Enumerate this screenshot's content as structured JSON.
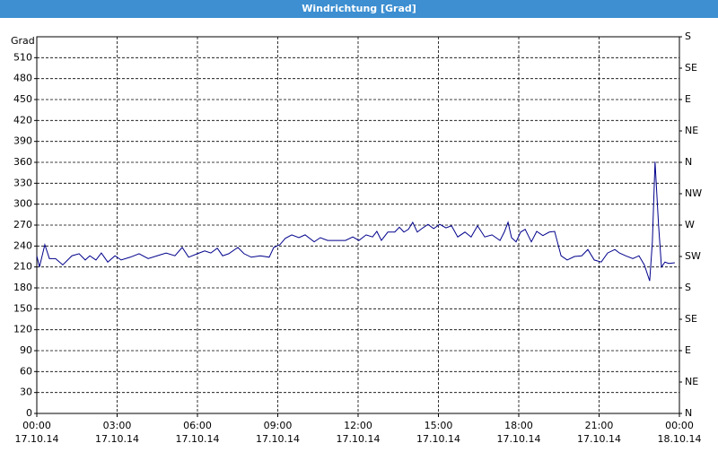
{
  "chart_data": {
    "type": "line",
    "title": "Windrichtung [Grad]",
    "y_label": "Grad",
    "x": [
      0,
      0.1,
      0.3,
      0.47,
      0.7,
      0.97,
      1.31,
      1.58,
      1.81,
      1.98,
      2.21,
      2.41,
      2.65,
      2.92,
      3.15,
      3.49,
      3.82,
      4.16,
      4.49,
      4.83,
      5.16,
      5.43,
      5.67,
      6.0,
      6.27,
      6.5,
      6.74,
      6.94,
      7.17,
      7.51,
      7.74,
      8.01,
      8.35,
      8.68,
      8.85,
      9.08,
      9.28,
      9.52,
      9.79,
      10.02,
      10.36,
      10.59,
      10.86,
      11.2,
      11.53,
      11.8,
      12.03,
      12.3,
      12.54,
      12.7,
      12.87,
      13.11,
      13.37,
      13.54,
      13.71,
      13.88,
      14.04,
      14.21,
      14.38,
      14.61,
      14.82,
      15.05,
      15.28,
      15.49,
      15.72,
      15.99,
      16.22,
      16.46,
      16.73,
      17.0,
      17.3,
      17.46,
      17.6,
      17.73,
      17.9,
      18.07,
      18.24,
      18.47,
      18.67,
      18.9,
      19.14,
      19.34,
      19.58,
      19.81,
      20.08,
      20.35,
      20.58,
      20.82,
      21.08,
      21.32,
      21.59,
      21.76,
      21.99,
      22.26,
      22.49,
      22.69,
      22.89,
      22.99,
      23.09,
      23.22,
      23.33,
      23.46,
      23.6,
      23.83
    ],
    "series": [
      {
        "color": "#00008b",
        "values": [
          226,
          210,
          242,
          222,
          222,
          213,
          226,
          229,
          220,
          226,
          220,
          230,
          217,
          226,
          220,
          224,
          229,
          222,
          226,
          230,
          226,
          238,
          224,
          229,
          233,
          230,
          237,
          226,
          229,
          238,
          229,
          224,
          226,
          224,
          238,
          242,
          251,
          256,
          252,
          256,
          246,
          252,
          248,
          248,
          248,
          253,
          248,
          256,
          253,
          261,
          248,
          260,
          260,
          267,
          260,
          264,
          274,
          260,
          265,
          271,
          265,
          271,
          266,
          269,
          253,
          260,
          253,
          269,
          253,
          256,
          248,
          260,
          274,
          252,
          246,
          260,
          264,
          246,
          261,
          255,
          260,
          261,
          226,
          220,
          225,
          226,
          235,
          220,
          217,
          230,
          235,
          230,
          226,
          222,
          226,
          213,
          190,
          246,
          361,
          271,
          210,
          217,
          215,
          216
        ]
      }
    ],
    "xlim": [
      0,
      24
    ],
    "xticks": [
      {
        "value": 0,
        "label": "00:00",
        "date": "17.10.14"
      },
      {
        "value": 3,
        "label": "03:00",
        "date": "17.10.14"
      },
      {
        "value": 6,
        "label": "06:00",
        "date": "17.10.14"
      },
      {
        "value": 9,
        "label": "09:00",
        "date": "17.10.14"
      },
      {
        "value": 12,
        "label": "12:00",
        "date": "17.10.14"
      },
      {
        "value": 15,
        "label": "15:00",
        "date": "17.10.14"
      },
      {
        "value": 18,
        "label": "18:00",
        "date": "17.10.14"
      },
      {
        "value": 21,
        "label": "21:00",
        "date": "17.10.14"
      },
      {
        "value": 24,
        "label": "00:00",
        "date": "18.10.14"
      }
    ],
    "ylim": [
      0,
      540
    ],
    "yticks": [
      0,
      30,
      60,
      90,
      120,
      150,
      180,
      210,
      240,
      270,
      300,
      330,
      360,
      390,
      420,
      450,
      480,
      510
    ],
    "y2lim": [
      0,
      540
    ],
    "y2ticks": [
      {
        "value": 0,
        "label": "N"
      },
      {
        "value": 45,
        "label": "NE"
      },
      {
        "value": 90,
        "label": "E"
      },
      {
        "value": 135,
        "label": "SE"
      },
      {
        "value": 180,
        "label": "S"
      },
      {
        "value": 225,
        "label": "SW"
      },
      {
        "value": 270,
        "label": "W"
      },
      {
        "value": 315,
        "label": "NW"
      },
      {
        "value": 360,
        "label": "N"
      },
      {
        "value": 405,
        "label": "NE"
      },
      {
        "value": 450,
        "label": "E"
      },
      {
        "value": 495,
        "label": "SE"
      },
      {
        "value": 540,
        "label": "S"
      }
    ],
    "grid": true
  }
}
